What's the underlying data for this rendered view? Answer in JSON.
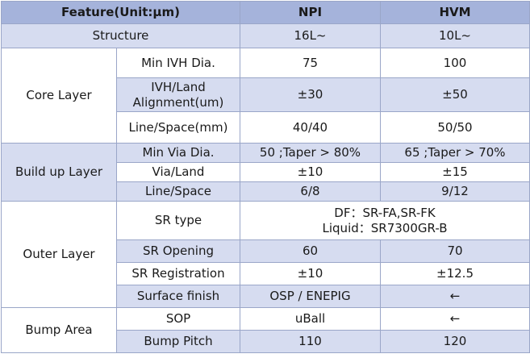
{
  "header": {
    "feature": "Feature(Unit:μm)",
    "npi": "NPI",
    "hvm": "HVM"
  },
  "structure": {
    "label": "Structure",
    "npi": "16L~",
    "hvm": "10L~"
  },
  "core": {
    "group": "Core Layer",
    "rows": [
      {
        "label": "Min IVH Dia.",
        "npi": "75",
        "hvm": "100"
      },
      {
        "label_line1": "IVH/Land",
        "label_line2": "Alignment(um)",
        "npi": "±30",
        "hvm": "±50"
      },
      {
        "label": "Line/Space(mm)",
        "npi": "40/40",
        "hvm": "50/50"
      }
    ]
  },
  "buildup": {
    "group": "Build up Layer",
    "rows": [
      {
        "label": "Min Via Dia.",
        "npi": "50 ;Taper > 80%",
        "hvm": "65 ;Taper > 70%"
      },
      {
        "label": "Via/Land",
        "npi": "±10",
        "hvm": "±15"
      },
      {
        "label": "Line/Space",
        "npi": "6/8",
        "hvm": "9/12"
      }
    ]
  },
  "outer": {
    "group": "Outer Layer",
    "sr_type": {
      "label": "SR type",
      "line1": "DF：SR-FA,SR-FK",
      "line2": "Liquid：SR7300GR-B"
    },
    "rows": [
      {
        "label": "SR Opening",
        "npi": "60",
        "hvm": "70"
      },
      {
        "label": "SR Registration",
        "npi": "±10",
        "hvm": "±12.5"
      },
      {
        "label": "Surface finish",
        "npi": "OSP / ENEPIG",
        "hvm": "←"
      }
    ]
  },
  "bump": {
    "group": "Bump Area",
    "rows": [
      {
        "label": "SOP",
        "npi": "uBall",
        "hvm": "←"
      },
      {
        "label": "Bump Pitch",
        "npi": "110",
        "hvm": "120"
      }
    ]
  }
}
